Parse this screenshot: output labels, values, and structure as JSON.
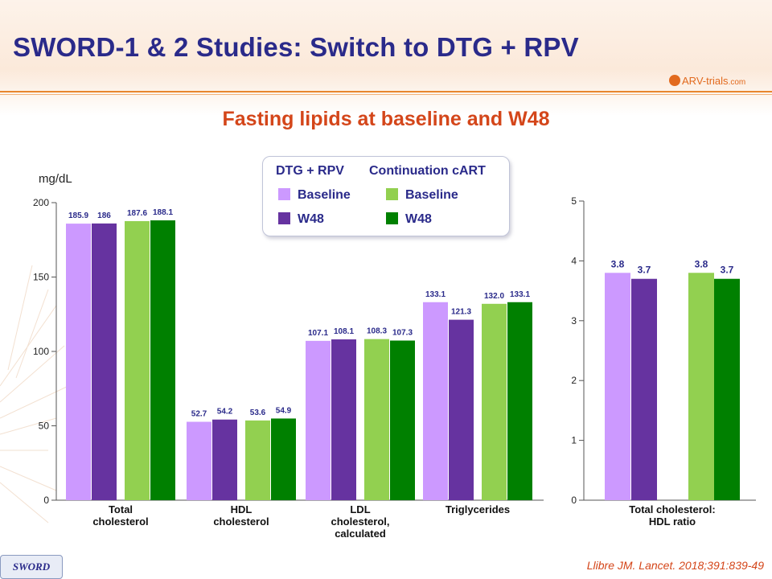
{
  "title": "SWORD-1 & 2 Studies: Switch to DTG + RPV",
  "logo_text": "ARV-trials",
  "logo_suffix": ".com",
  "subtitle": "Fasting lipids at baseline and W48",
  "unit_label": "mg/dL",
  "legend": {
    "group1": "DTG + RPV",
    "group2": "Continuation  cART",
    "g1_baseline": "Baseline",
    "g1_w48": "W48",
    "g2_baseline": "Baseline",
    "g2_w48": "W48"
  },
  "colors": {
    "dtg_baseline": "#cc99ff",
    "dtg_w48": "#6633a0",
    "cart_baseline": "#92d050",
    "cart_w48": "#008000",
    "text_navy": "#2a2a8a",
    "accent_orange": "#d4461a"
  },
  "badge": "SWORD",
  "citation": "Llibre JM. Lancet. 2018;391:839-49",
  "chart_data": [
    {
      "type": "bar",
      "categories": [
        "Total\ncholesterol",
        "HDL\ncholesterol",
        "LDL\ncholesterol,\ncalculated",
        "Triglycerides"
      ],
      "series": [
        {
          "name": "Baseline",
          "values": [
            185.9,
            52.7,
            107.1,
            133.1
          ],
          "labels": [
            "185.9",
            "52.7",
            "107.1",
            "133.1"
          ]
        },
        {
          "name": "W48",
          "values": [
            186,
            54.2,
            108.1,
            121.3
          ],
          "labels": [
            "186",
            "54.2",
            "108.1",
            "121.3"
          ]
        },
        {
          "name": "Baseline",
          "values": [
            187.6,
            53.6,
            108.3,
            132.0
          ],
          "labels": [
            "187.6",
            "53.6",
            "108.3",
            "132.0"
          ]
        },
        {
          "name": "W48",
          "values": [
            188.1,
            54.9,
            107.3,
            133.1
          ],
          "labels": [
            "188.1",
            "54.9",
            "107.3",
            "133.1"
          ]
        }
      ],
      "ylabel": "mg/dL",
      "ylim": [
        0,
        200
      ],
      "yticks": [
        0,
        50,
        100,
        150,
        200
      ],
      "grid": false
    },
    {
      "type": "bar",
      "categories": [
        "Total cholesterol:\nHDL ratio"
      ],
      "series": [
        {
          "name": "Baseline",
          "values": [
            3.8
          ],
          "labels": [
            "3.8"
          ]
        },
        {
          "name": "W48",
          "values": [
            3.7
          ],
          "labels": [
            "3.7"
          ]
        },
        {
          "name": "Baseline",
          "values": [
            3.8
          ],
          "labels": [
            "3.8"
          ]
        },
        {
          "name": "W48",
          "values": [
            3.7
          ],
          "labels": [
            "3.7"
          ]
        }
      ],
      "ylim": [
        0,
        5
      ],
      "yticks": [
        0,
        1,
        2,
        3,
        4,
        5
      ],
      "grid": false
    }
  ]
}
